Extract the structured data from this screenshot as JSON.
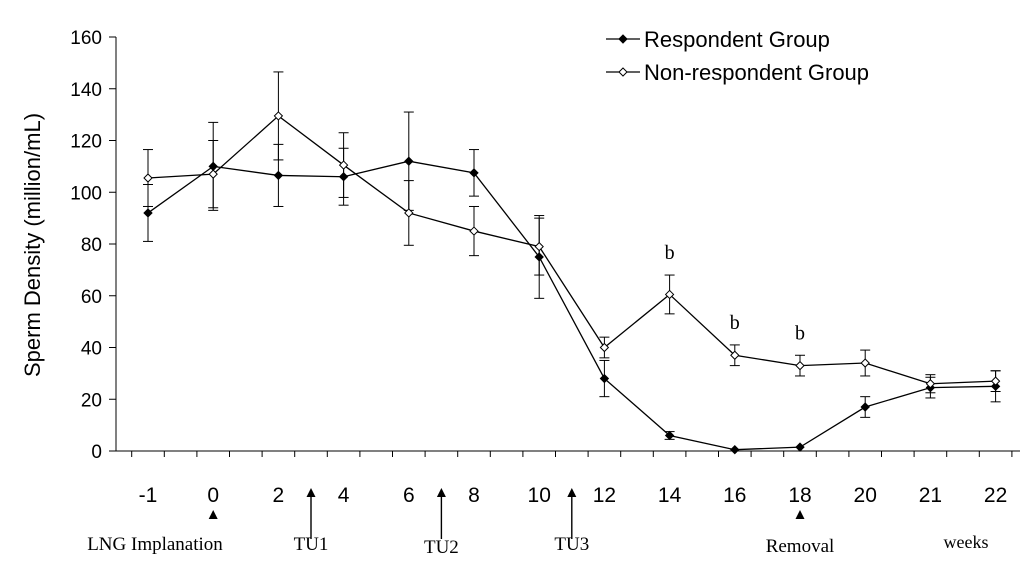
{
  "chart_data": {
    "type": "line",
    "ylabel": "Sperm Density (million/mL)",
    "ylim": [
      0,
      160
    ],
    "yticks": [
      0,
      20,
      40,
      60,
      80,
      100,
      120,
      140,
      160
    ],
    "categories": [
      "-1",
      "0",
      "2",
      "4",
      "6",
      "8",
      "10",
      "12",
      "14",
      "16",
      "18",
      "20",
      "21",
      "22"
    ],
    "x_unit_label": "weeks",
    "grid": false,
    "legend_position": "top-right",
    "series": [
      {
        "name": "Respondent Group",
        "marker": "filled-diamond",
        "values": [
          92,
          110,
          106.5,
          106,
          112,
          107.5,
          75,
          28,
          6,
          0.5,
          1.5,
          17,
          24.5,
          25
        ],
        "error": [
          11,
          17,
          12,
          11,
          19,
          9,
          16,
          7,
          1.5,
          0,
          0,
          4,
          4,
          6
        ]
      },
      {
        "name": "Non-respondent Group",
        "marker": "open-diamond",
        "values": [
          105.5,
          107,
          129.5,
          110.5,
          92,
          85,
          79,
          40,
          60.5,
          37,
          33,
          34,
          26,
          27
        ],
        "error": [
          11,
          13,
          17,
          12.5,
          12.5,
          9.5,
          11,
          4,
          7.5,
          4,
          4,
          5,
          3.5,
          4
        ]
      }
    ],
    "annotations": [
      {
        "text": "b",
        "category": "14"
      },
      {
        "text": "b",
        "category": "16"
      },
      {
        "text": "b",
        "category": "18"
      }
    ],
    "events": [
      {
        "text": "LNG Implanation",
        "at": 0
      },
      {
        "text": "TU1",
        "at": 3
      },
      {
        "text": "TU2",
        "at": 7
      },
      {
        "text": "TU3",
        "at": 11
      },
      {
        "text": "Removal",
        "at": 18
      }
    ]
  }
}
